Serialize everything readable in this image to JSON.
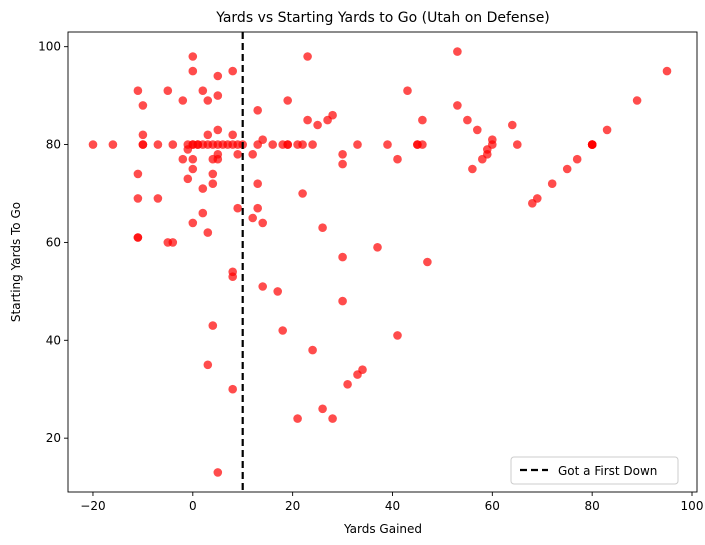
{
  "chart_data": {
    "type": "scatter",
    "title": "Yards vs Starting Yards to Go (Utah on Defense)",
    "xlabel": "Yards Gained",
    "ylabel": "Starting Yards To Go",
    "xlim": [
      -25,
      101
    ],
    "ylim": [
      9,
      103
    ],
    "xticks": [
      -20,
      0,
      20,
      40,
      60,
      80,
      100
    ],
    "yticks": [
      20,
      40,
      60,
      80,
      100
    ],
    "grid": false,
    "legend_position": "lower-right",
    "point_color": "#ff0000",
    "reference_line": {
      "x": 10,
      "label": "Got a First Down",
      "color": "#000000",
      "style": "dashed"
    },
    "points": [
      [
        -20,
        80
      ],
      [
        -16,
        80
      ],
      [
        -11,
        91
      ],
      [
        -11,
        74
      ],
      [
        -11,
        69
      ],
      [
        -11,
        61
      ],
      [
        -11,
        61
      ],
      [
        -10,
        88
      ],
      [
        -10,
        82
      ],
      [
        -10,
        80
      ],
      [
        -10,
        80
      ],
      [
        -7,
        80
      ],
      [
        -7,
        69
      ],
      [
        -5,
        91
      ],
      [
        -5,
        60
      ],
      [
        -4,
        60
      ],
      [
        -4,
        80
      ],
      [
        -2,
        89
      ],
      [
        -2,
        77
      ],
      [
        -1,
        80
      ],
      [
        -1,
        79
      ],
      [
        -1,
        73
      ],
      [
        0,
        98
      ],
      [
        0,
        95
      ],
      [
        0,
        80
      ],
      [
        0,
        80
      ],
      [
        0,
        77
      ],
      [
        0,
        75
      ],
      [
        0,
        64
      ],
      [
        1,
        80
      ],
      [
        1,
        80
      ],
      [
        2,
        91
      ],
      [
        2,
        80
      ],
      [
        2,
        71
      ],
      [
        2,
        66
      ],
      [
        3,
        89
      ],
      [
        3,
        82
      ],
      [
        3,
        80
      ],
      [
        3,
        62
      ],
      [
        3,
        35
      ],
      [
        4,
        80
      ],
      [
        4,
        77
      ],
      [
        4,
        74
      ],
      [
        4,
        72
      ],
      [
        4,
        43
      ],
      [
        5,
        94
      ],
      [
        5,
        90
      ],
      [
        5,
        83
      ],
      [
        5,
        80
      ],
      [
        5,
        78
      ],
      [
        5,
        77
      ],
      [
        5,
        13
      ],
      [
        6,
        80
      ],
      [
        7,
        80
      ],
      [
        8,
        95
      ],
      [
        8,
        82
      ],
      [
        8,
        80
      ],
      [
        8,
        54
      ],
      [
        8,
        53
      ],
      [
        8,
        30
      ],
      [
        9,
        80
      ],
      [
        9,
        78
      ],
      [
        9,
        67
      ],
      [
        10,
        80
      ],
      [
        12,
        78
      ],
      [
        12,
        65
      ],
      [
        13,
        87
      ],
      [
        13,
        80
      ],
      [
        13,
        72
      ],
      [
        13,
        67
      ],
      [
        14,
        81
      ],
      [
        14,
        64
      ],
      [
        14,
        51
      ],
      [
        16,
        80
      ],
      [
        17,
        50
      ],
      [
        18,
        80
      ],
      [
        18,
        42
      ],
      [
        19,
        89
      ],
      [
        19,
        80
      ],
      [
        19,
        80
      ],
      [
        21,
        80
      ],
      [
        21,
        24
      ],
      [
        22,
        80
      ],
      [
        22,
        70
      ],
      [
        23,
        98
      ],
      [
        23,
        85
      ],
      [
        24,
        80
      ],
      [
        24,
        38
      ],
      [
        25,
        84
      ],
      [
        26,
        63
      ],
      [
        26,
        26
      ],
      [
        27,
        85
      ],
      [
        28,
        86
      ],
      [
        28,
        24
      ],
      [
        30,
        78
      ],
      [
        30,
        76
      ],
      [
        30,
        57
      ],
      [
        30,
        48
      ],
      [
        31,
        31
      ],
      [
        33,
        80
      ],
      [
        33,
        33
      ],
      [
        34,
        34
      ],
      [
        37,
        59
      ],
      [
        39,
        80
      ],
      [
        41,
        77
      ],
      [
        41,
        41
      ],
      [
        43,
        91
      ],
      [
        45,
        80
      ],
      [
        45,
        80
      ],
      [
        46,
        85
      ],
      [
        46,
        80
      ],
      [
        47,
        56
      ],
      [
        53,
        99
      ],
      [
        53,
        88
      ],
      [
        55,
        85
      ],
      [
        56,
        75
      ],
      [
        57,
        83
      ],
      [
        58,
        77
      ],
      [
        59,
        79
      ],
      [
        59,
        78
      ],
      [
        60,
        81
      ],
      [
        60,
        80
      ],
      [
        64,
        84
      ],
      [
        65,
        80
      ],
      [
        68,
        68
      ],
      [
        69,
        69
      ],
      [
        72,
        72
      ],
      [
        75,
        75
      ],
      [
        77,
        77
      ],
      [
        80,
        80
      ],
      [
        80,
        80
      ],
      [
        80,
        80
      ],
      [
        80,
        80
      ],
      [
        83,
        83
      ],
      [
        89,
        89
      ],
      [
        95,
        95
      ]
    ]
  }
}
